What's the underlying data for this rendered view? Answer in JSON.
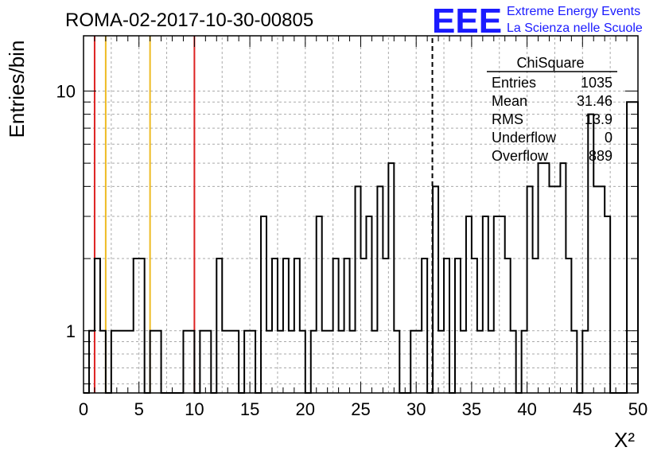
{
  "chart_data": {
    "type": "bar",
    "title": "ROMA-02-2017-10-30-00805",
    "xlabel": "X²",
    "ylabel": "Entries/bin",
    "xlim": [
      0,
      50
    ],
    "ylim": [
      0.55,
      17
    ],
    "log_y": true,
    "grid": true,
    "bin_width": 1,
    "x_ticks": [
      "0",
      "5",
      "10",
      "15",
      "20",
      "25",
      "30",
      "35",
      "40",
      "45",
      "50"
    ],
    "y_ticks": [
      "1",
      "10"
    ],
    "bins": [
      {
        "x": 0,
        "y": 0
      },
      {
        "x": 0.5,
        "y": 1
      },
      {
        "x": 1,
        "y": 2
      },
      {
        "x": 1.5,
        "y": 1
      },
      {
        "x": 2,
        "y": 0
      },
      {
        "x": 2.5,
        "y": 1
      },
      {
        "x": 3,
        "y": 1
      },
      {
        "x": 3.5,
        "y": 1
      },
      {
        "x": 4,
        "y": 1
      },
      {
        "x": 4.5,
        "y": 2
      },
      {
        "x": 5,
        "y": 2
      },
      {
        "x": 5.5,
        "y": 0
      },
      {
        "x": 6,
        "y": 1
      },
      {
        "x": 6.5,
        "y": 1
      },
      {
        "x": 7,
        "y": 0
      },
      {
        "x": 7.5,
        "y": 0
      },
      {
        "x": 8,
        "y": 0
      },
      {
        "x": 8.5,
        "y": 0
      },
      {
        "x": 9,
        "y": 1
      },
      {
        "x": 9.5,
        "y": 1
      },
      {
        "x": 10,
        "y": 0
      },
      {
        "x": 10.5,
        "y": 1
      },
      {
        "x": 11,
        "y": 1
      },
      {
        "x": 11.5,
        "y": 0
      },
      {
        "x": 12,
        "y": 2
      },
      {
        "x": 12.5,
        "y": 1
      },
      {
        "x": 13,
        "y": 1
      },
      {
        "x": 13.5,
        "y": 1
      },
      {
        "x": 14,
        "y": 0
      },
      {
        "x": 14.5,
        "y": 1
      },
      {
        "x": 15,
        "y": 1
      },
      {
        "x": 15.5,
        "y": 0
      },
      {
        "x": 16,
        "y": 3
      },
      {
        "x": 16.5,
        "y": 1
      },
      {
        "x": 17,
        "y": 2
      },
      {
        "x": 17.5,
        "y": 1
      },
      {
        "x": 18,
        "y": 2
      },
      {
        "x": 18.5,
        "y": 1
      },
      {
        "x": 19,
        "y": 2
      },
      {
        "x": 19.5,
        "y": 1
      },
      {
        "x": 20,
        "y": 0
      },
      {
        "x": 20.5,
        "y": 1
      },
      {
        "x": 21,
        "y": 3
      },
      {
        "x": 21.5,
        "y": 1
      },
      {
        "x": 22,
        "y": 1
      },
      {
        "x": 22.5,
        "y": 2
      },
      {
        "x": 23,
        "y": 1
      },
      {
        "x": 23.5,
        "y": 2
      },
      {
        "x": 24,
        "y": 1
      },
      {
        "x": 24.5,
        "y": 4
      },
      {
        "x": 25,
        "y": 2
      },
      {
        "x": 25.5,
        "y": 3
      },
      {
        "x": 26,
        "y": 1
      },
      {
        "x": 26.5,
        "y": 4
      },
      {
        "x": 27,
        "y": 2
      },
      {
        "x": 27.5,
        "y": 5
      },
      {
        "x": 28,
        "y": 1
      },
      {
        "x": 28.5,
        "y": 0
      },
      {
        "x": 29,
        "y": 0
      },
      {
        "x": 29.5,
        "y": 1
      },
      {
        "x": 30,
        "y": 1
      },
      {
        "x": 30.5,
        "y": 2
      },
      {
        "x": 31,
        "y": 0
      },
      {
        "x": 31.5,
        "y": 4
      },
      {
        "x": 32,
        "y": 1
      },
      {
        "x": 32.5,
        "y": 2
      },
      {
        "x": 33,
        "y": 0
      },
      {
        "x": 33.5,
        "y": 2
      },
      {
        "x": 34,
        "y": 1
      },
      {
        "x": 34.5,
        "y": 3
      },
      {
        "x": 35,
        "y": 2
      },
      {
        "x": 35.5,
        "y": 1
      },
      {
        "x": 36,
        "y": 3
      },
      {
        "x": 36.5,
        "y": 1
      },
      {
        "x": 37,
        "y": 3
      },
      {
        "x": 37.5,
        "y": 3
      },
      {
        "x": 38,
        "y": 2
      },
      {
        "x": 38.5,
        "y": 1
      },
      {
        "x": 39,
        "y": 0
      },
      {
        "x": 39.5,
        "y": 1
      },
      {
        "x": 40,
        "y": 4
      },
      {
        "x": 40.5,
        "y": 2
      },
      {
        "x": 41,
        "y": 5
      },
      {
        "x": 41.5,
        "y": 5
      },
      {
        "x": 42,
        "y": 4
      },
      {
        "x": 42.5,
        "y": 4
      },
      {
        "x": 43,
        "y": 5
      },
      {
        "x": 43.5,
        "y": 2
      },
      {
        "x": 44,
        "y": 1
      },
      {
        "x": 44.5,
        "y": 0
      },
      {
        "x": 45,
        "y": 1
      },
      {
        "x": 45.5,
        "y": 8
      },
      {
        "x": 46,
        "y": 4
      },
      {
        "x": 46.5,
        "y": 4
      },
      {
        "x": 47,
        "y": 3
      },
      {
        "x": 47.5,
        "y": 0
      },
      {
        "x": 48,
        "y": 0
      },
      {
        "x": 48.5,
        "y": 0
      },
      {
        "x": 49,
        "y": 9
      },
      {
        "x": 49.5,
        "y": 9
      }
    ],
    "vertical_lines": [
      {
        "x": 1,
        "color": "#dd2222",
        "style": "solid"
      },
      {
        "x": 2,
        "color": "#eebb22",
        "style": "solid"
      },
      {
        "x": 6,
        "color": "#eebb22",
        "style": "solid"
      },
      {
        "x": 10,
        "color": "#dd2222",
        "style": "solid"
      },
      {
        "x": 31.46,
        "color": "#000000",
        "style": "dashed"
      }
    ],
    "stats_box": {
      "name": "ChiSquare",
      "rows": [
        {
          "label": "Entries",
          "value": "1035"
        },
        {
          "label": "Mean",
          "value": "31.46"
        },
        {
          "label": "RMS",
          "value": "13.9"
        },
        {
          "label": "Underflow",
          "value": "0"
        },
        {
          "label": "Overflow",
          "value": "889"
        }
      ]
    }
  },
  "logo": {
    "mark": "EEE",
    "line1": "Extreme Energy Events",
    "line2": "La Scienza nelle Scuole",
    "color": "#1a1aff"
  }
}
